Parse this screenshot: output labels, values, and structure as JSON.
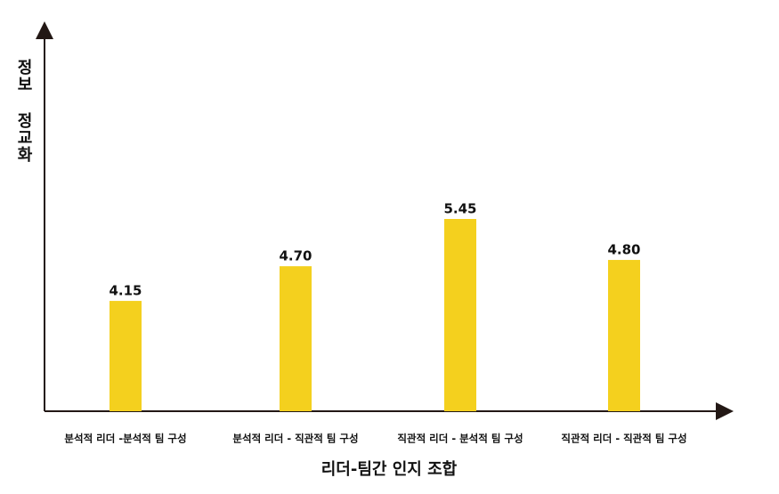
{
  "chart_data": {
    "type": "bar",
    "x_label": "리더-팀간 인지 조합",
    "y_label": "정보 정교화",
    "categories": [
      "분석적 리더 -분석적 팀 구성",
      "분석적 리더 - 직관적 팀 구성",
      "직관적 리더 - 분석적 팀 구성",
      "직관적 리더 - 직관적 팀 구성"
    ],
    "values": [
      4.15,
      4.7,
      5.45,
      4.8
    ],
    "value_labels": [
      "4.15",
      "4.70",
      "5.45",
      "4.80"
    ],
    "color": "#f4d01e",
    "ylim": [
      2.4,
      8.5
    ]
  }
}
